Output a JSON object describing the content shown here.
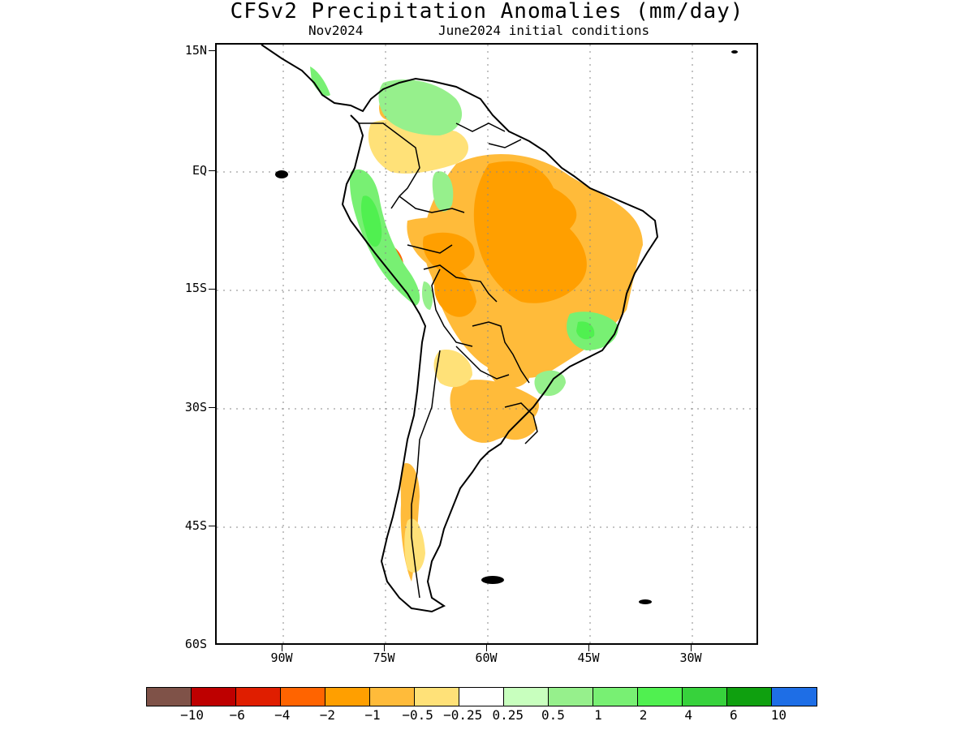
{
  "title": "CFSv2 Precipitation Anomalies (mm/day)",
  "subtitle_left": "Nov2024",
  "subtitle_right": "June2024 initial conditions",
  "map": {
    "region": "South America",
    "lat_labels": [
      "15N",
      "EQ",
      "15S",
      "30S",
      "45S",
      "60S"
    ],
    "lon_labels": [
      "90W",
      "75W",
      "60W",
      "45W",
      "30W"
    ],
    "lat_range": [
      -60,
      15
    ],
    "lon_range": [
      -95,
      -25
    ],
    "grid": "dotted"
  },
  "colorbar": {
    "colors": [
      "#7f5248",
      "#be0000",
      "#e01e00",
      "#ff6400",
      "#ff9f00",
      "#ffbb3a",
      "#ffe178",
      "#ffffff",
      "#c8ffbe",
      "#96f08c",
      "#78f073",
      "#50f050",
      "#37d23c",
      "#0fa00f",
      "#1e6ee6"
    ],
    "labels": [
      "-10",
      "-6",
      "-4",
      "-2",
      "-1",
      "-0.5",
      "-0.25",
      "0.25",
      "0.5",
      "1",
      "2",
      "4",
      "6",
      "10"
    ]
  }
}
